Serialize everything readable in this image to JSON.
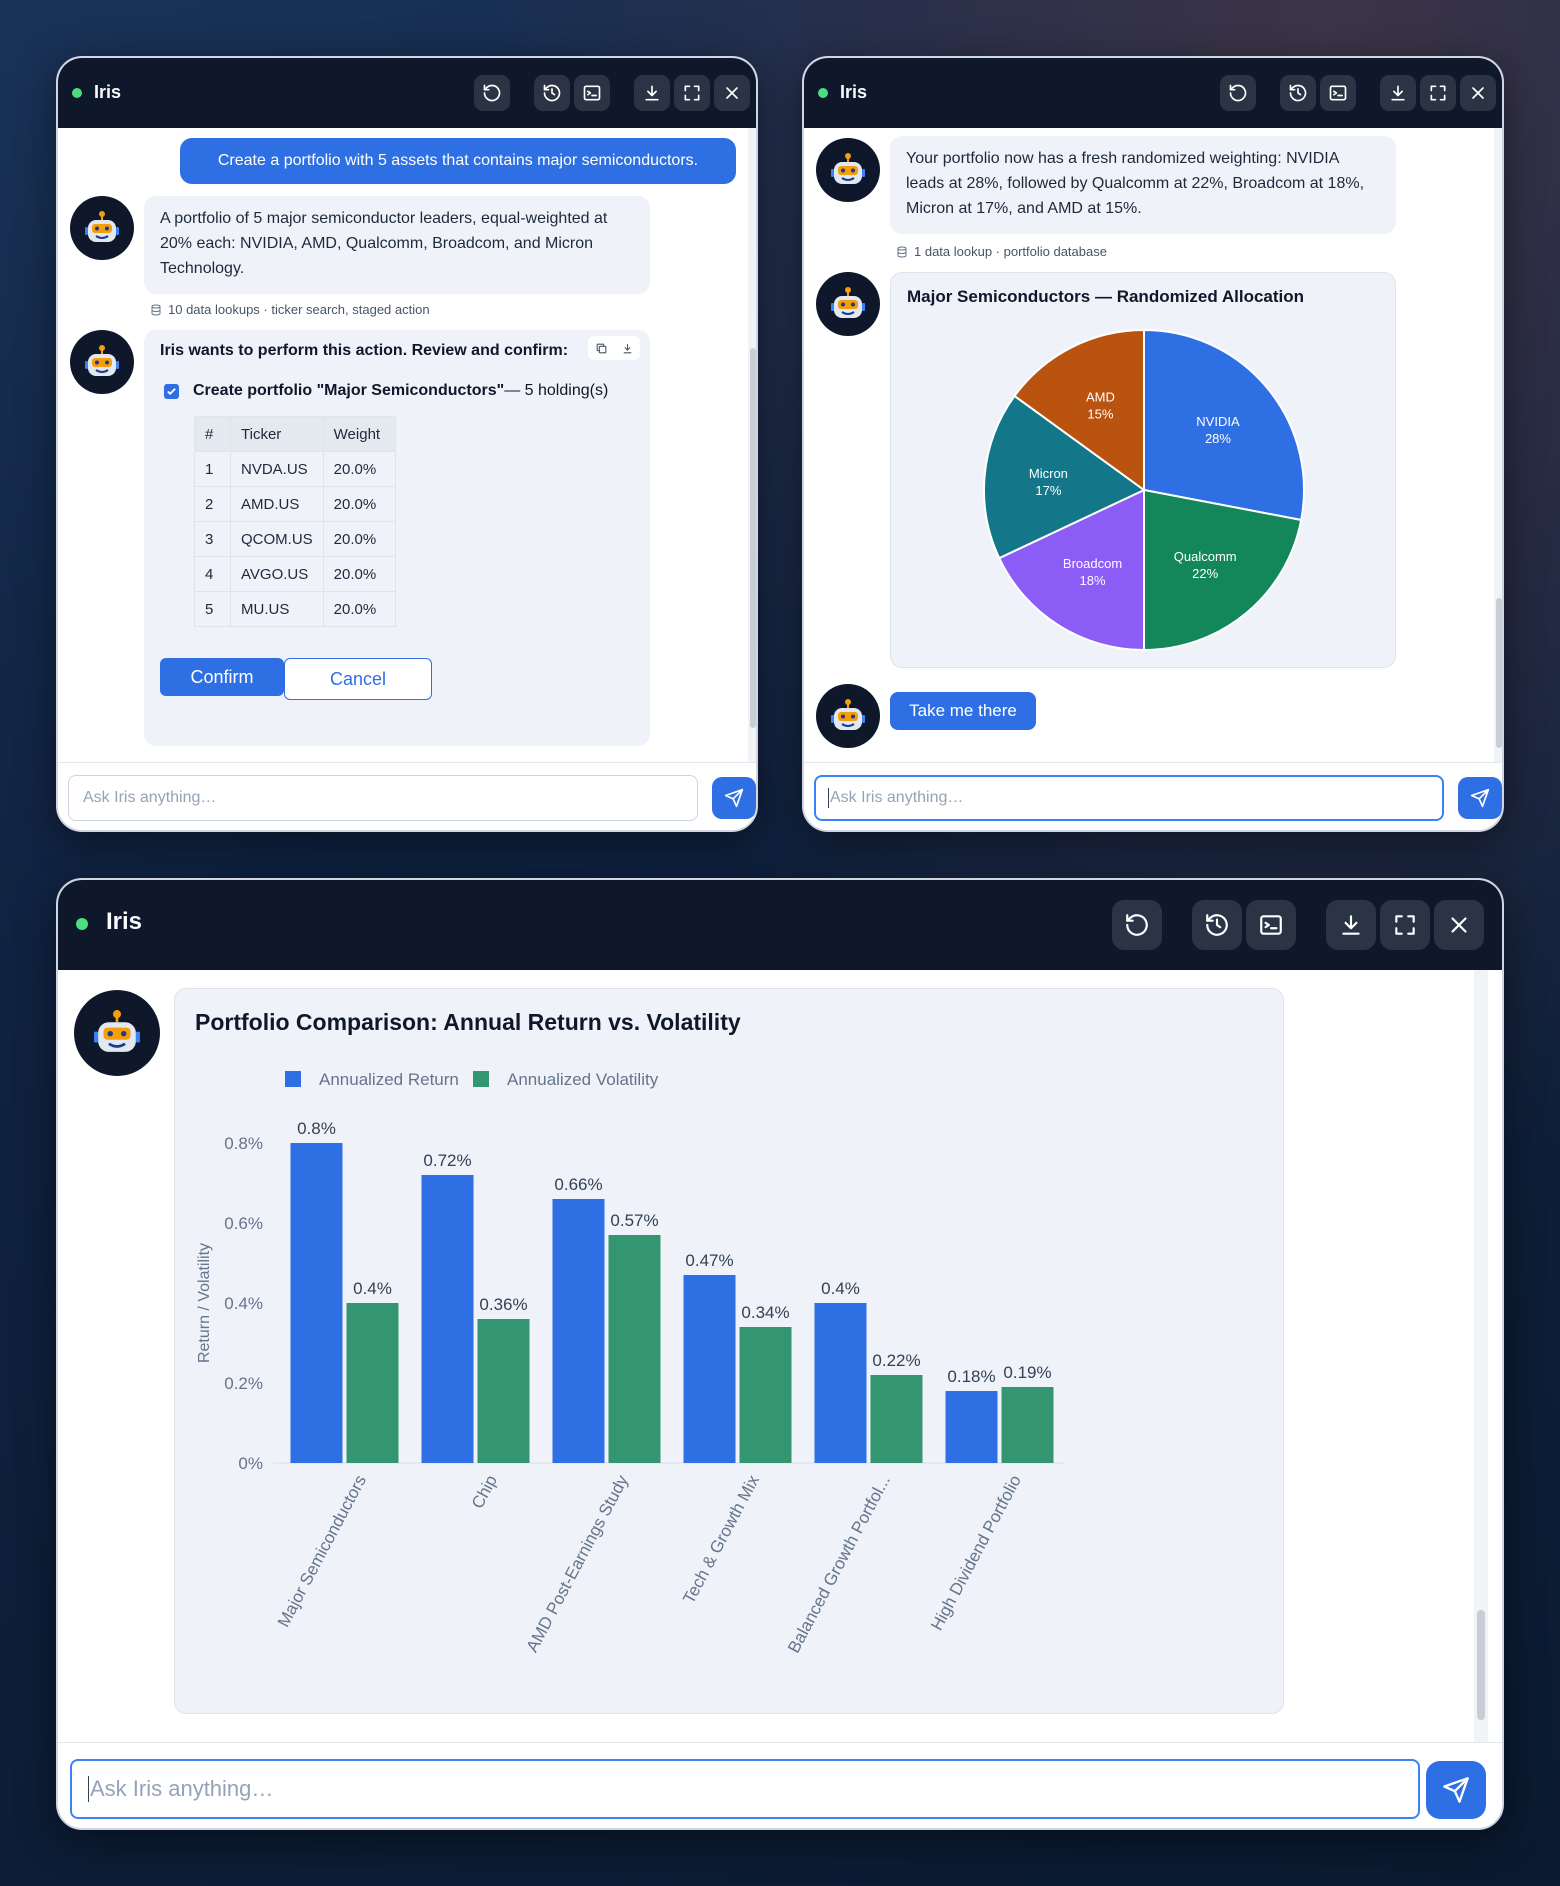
{
  "app_title": "Iris",
  "input_placeholder": "Ask Iris anything…",
  "window1": {
    "user_message": "Create a portfolio with 5 assets that contains major semiconductors.",
    "assistant_message": "A portfolio of 5 major semiconductor leaders, equal-weighted at 20% each: NVIDIA, AMD, Qualcomm, Broadcom, and Micron Technology.",
    "meta": "10 data lookups · ticker search, staged action",
    "action_header": "Iris wants to perform this action. Review and confirm:",
    "action_bold": "Create portfolio \"Major Semiconductors\"",
    "action_suffix": " — 5 holding(s)",
    "table_headers": [
      "#",
      "Ticker",
      "Weight"
    ],
    "holdings": [
      {
        "n": "1",
        "ticker": "NVDA.US",
        "weight": "20.0%"
      },
      {
        "n": "2",
        "ticker": "AMD.US",
        "weight": "20.0%"
      },
      {
        "n": "3",
        "ticker": "QCOM.US",
        "weight": "20.0%"
      },
      {
        "n": "4",
        "ticker": "AVGO.US",
        "weight": "20.0%"
      },
      {
        "n": "5",
        "ticker": "MU.US",
        "weight": "20.0%"
      }
    ],
    "confirm_label": "Confirm",
    "cancel_label": "Cancel"
  },
  "window2": {
    "assistant_message": "Your portfolio now has a fresh randomized weighting: NVIDIA leads at 28%, followed by Qualcomm at 22%, Broadcom at 18%, Micron at 17%, and AMD at 15%.",
    "meta": "1 data lookup · portfolio database",
    "take_me_there": "Take me there"
  },
  "window3": {},
  "chart_data": [
    {
      "type": "pie",
      "title": "Major Semiconductors — Randomized Allocation",
      "labels": [
        "NVIDIA",
        "Qualcomm",
        "Broadcom",
        "Micron",
        "AMD"
      ],
      "values": [
        28,
        22,
        18,
        17,
        15
      ],
      "value_labels": [
        "28%",
        "22%",
        "18%",
        "17%",
        "15%"
      ],
      "colors": [
        "#2f6fe4",
        "#13875a",
        "#8b5cf6",
        "#137789",
        "#b9530f"
      ]
    },
    {
      "type": "bar",
      "title": "Portfolio Comparison: Annual Return vs. Volatility",
      "ylabel": "Return / Volatility",
      "categories": [
        "Major Semiconductors",
        "Chip",
        "AMD Post-Earnings Study",
        "Tech & Growth Mix",
        "Balanced Growth Portfol...",
        "High Dividend Portfolio"
      ],
      "series": [
        {
          "name": "Annualized Return",
          "color": "#2f6fe4",
          "values": [
            0.8,
            0.72,
            0.66,
            0.47,
            0.4,
            0.18
          ],
          "labels": [
            "0.8%",
            "0.72%",
            "0.66%",
            "0.47%",
            "0.4%",
            "0.18%"
          ]
        },
        {
          "name": "Annualized Volatility",
          "color": "#349671",
          "values": [
            0.4,
            0.36,
            0.57,
            0.34,
            0.22,
            0.19
          ],
          "labels": [
            "0.4%",
            "0.36%",
            "0.57%",
            "0.34%",
            "0.22%",
            "0.19%"
          ]
        }
      ],
      "yticks": [
        0,
        0.2,
        0.4,
        0.6,
        0.8
      ],
      "ytick_labels": [
        "0%",
        "0.2%",
        "0.4%",
        "0.6%",
        "0.8%"
      ],
      "ylim": [
        0,
        0.8
      ],
      "legend": "top-left",
      "grid": false
    }
  ]
}
